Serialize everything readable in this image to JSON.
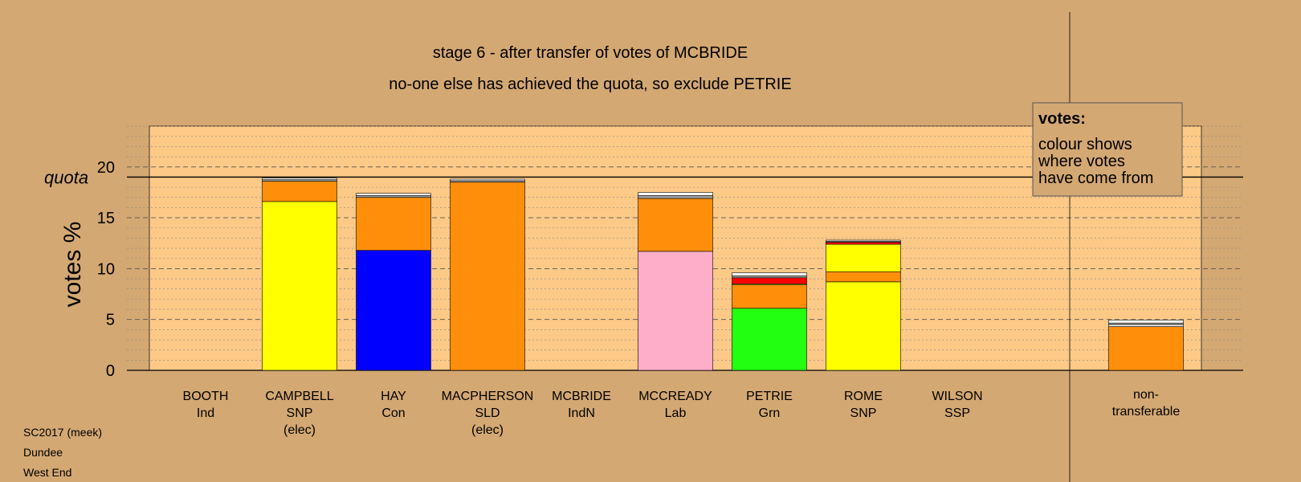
{
  "title_line1": "stage 6 - after transfer of votes of MCBRIDE",
  "title_line2": "no-one else has achieved the quota, so exclude PETRIE",
  "footer": [
    "SC2017 (meek)",
    "Dundee",
    "West End"
  ],
  "legend": {
    "title": "votes:",
    "lines": [
      "colour shows",
      "where votes",
      "have come from"
    ]
  },
  "colors": {
    "background": "#d4a873",
    "plot_background": "#fcc987",
    "SNP": "#ffff00",
    "Con": "#0000ff",
    "SLD": "#ff8f0a",
    "Lab": "#ffaec9",
    "Grn": "#22ff11",
    "SSP": "#ff0000",
    "IndN": "#ffffff",
    "Ind": "#a0a0a0"
  },
  "chart_data": {
    "type": "bar",
    "stacked": true,
    "ylabel": "votes %",
    "ylim": [
      0,
      24
    ],
    "yticks": [
      0,
      5,
      10,
      15,
      20
    ],
    "quota": 19.0,
    "quota_label": "quota",
    "grid": true,
    "legend_position": "top-right",
    "categories": [
      {
        "name": "BOOTH",
        "party": "Ind",
        "note": ""
      },
      {
        "name": "CAMPBELL",
        "party": "SNP",
        "note": "(elec)"
      },
      {
        "name": "HAY",
        "party": "Con",
        "note": ""
      },
      {
        "name": "MACPHERSON",
        "party": "SLD",
        "note": "(elec)"
      },
      {
        "name": "MCBRIDE",
        "party": "IndN",
        "note": ""
      },
      {
        "name": "MCCREADY",
        "party": "Lab",
        "note": ""
      },
      {
        "name": "PETRIE",
        "party": "Grn",
        "note": ""
      },
      {
        "name": "ROME",
        "party": "SNP",
        "note": ""
      },
      {
        "name": "WILSON",
        "party": "SSP",
        "note": ""
      }
    ],
    "stacks": [
      [],
      [
        {
          "source": "SNP",
          "value": 16.6
        },
        {
          "source": "SLD",
          "value": 2.0
        },
        {
          "source": "Ind",
          "value": 0.15
        },
        {
          "source": "IndN",
          "value": 0.15
        }
      ],
      [
        {
          "source": "Con",
          "value": 11.8
        },
        {
          "source": "SLD",
          "value": 5.2
        },
        {
          "source": "Ind",
          "value": 0.2
        },
        {
          "source": "IndN",
          "value": 0.2
        }
      ],
      [
        {
          "source": "SLD",
          "value": 18.5
        },
        {
          "source": "Ind",
          "value": 0.15
        },
        {
          "source": "IndN",
          "value": 0.15
        }
      ],
      [],
      [
        {
          "source": "Lab",
          "value": 11.7
        },
        {
          "source": "SLD",
          "value": 5.2
        },
        {
          "source": "Ind",
          "value": 0.3
        },
        {
          "source": "IndN",
          "value": 0.3
        }
      ],
      [
        {
          "source": "Grn",
          "value": 6.1
        },
        {
          "source": "SLD",
          "value": 2.3
        },
        {
          "source": "SNP",
          "value": 0.1
        },
        {
          "source": "SSP",
          "value": 0.6
        },
        {
          "source": "Ind",
          "value": 0.2
        },
        {
          "source": "IndN",
          "value": 0.3
        }
      ],
      [
        {
          "source": "SNP",
          "value": 8.7
        },
        {
          "source": "SLD",
          "value": 1.0
        },
        {
          "source": "SNP",
          "value": 2.7
        },
        {
          "source": "SSP",
          "value": 0.2
        },
        {
          "source": "Ind",
          "value": 0.1
        },
        {
          "source": "IndN",
          "value": 0.1
        }
      ],
      []
    ],
    "nontransferable": {
      "label_lines": [
        "non-",
        "transferable"
      ],
      "stack": [
        {
          "source": "SLD",
          "value": 4.3
        },
        {
          "source": "IndN",
          "value": 0.2
        },
        {
          "source": "Ind",
          "value": 0.15
        },
        {
          "source": "IndN",
          "value": 0.3
        }
      ]
    }
  }
}
